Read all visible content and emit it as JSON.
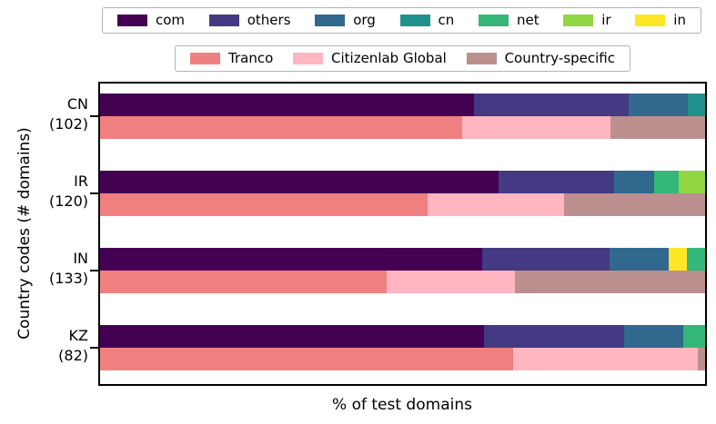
{
  "chart_data": {
    "type": "bar",
    "orientation": "horizontal",
    "xlabel": "% of test domains",
    "ylabel": "Country codes (# domains)",
    "xlim": [
      0,
      100
    ],
    "grid": false,
    "legend_position": "top, two rows, outside plot",
    "tld_legend": [
      {
        "label": "com",
        "color": "#440154"
      },
      {
        "label": "others",
        "color": "#443983"
      },
      {
        "label": "org",
        "color": "#31688e"
      },
      {
        "label": "cn",
        "color": "#21918c"
      },
      {
        "label": "net",
        "color": "#35b779"
      },
      {
        "label": "ir",
        "color": "#90d743"
      },
      {
        "label": "in",
        "color": "#fde725"
      }
    ],
    "list_legend": [
      {
        "label": "Tranco",
        "color": "#f08080"
      },
      {
        "label": "Citizenlab Global",
        "color": "#ffb6c1"
      },
      {
        "label": "Country-specific",
        "color": "#bc8f8f"
      }
    ],
    "groups": [
      {
        "country": "CN",
        "count_label": "(102)",
        "domains": 102,
        "tld_bar": [
          {
            "label": "com",
            "pct": 61.8
          },
          {
            "label": "others",
            "pct": 25.5
          },
          {
            "label": "org",
            "pct": 9.8
          },
          {
            "label": "cn",
            "pct": 2.9
          }
        ],
        "list_bar": [
          {
            "label": "Tranco",
            "pct": 59.8
          },
          {
            "label": "Citizenlab Global",
            "pct": 24.5
          },
          {
            "label": "Country-specific",
            "pct": 15.7
          }
        ]
      },
      {
        "country": "IR",
        "count_label": "(120)",
        "domains": 120,
        "tld_bar": [
          {
            "label": "com",
            "pct": 65.8
          },
          {
            "label": "others",
            "pct": 19.2
          },
          {
            "label": "org",
            "pct": 6.6
          },
          {
            "label": "net",
            "pct": 4.0
          },
          {
            "label": "ir",
            "pct": 4.4
          }
        ],
        "list_bar": [
          {
            "label": "Tranco",
            "pct": 54.2
          },
          {
            "label": "Citizenlab Global",
            "pct": 22.5
          },
          {
            "label": "Country-specific",
            "pct": 23.3
          }
        ]
      },
      {
        "country": "IN",
        "count_label": "(133)",
        "domains": 133,
        "tld_bar": [
          {
            "label": "com",
            "pct": 63.2
          },
          {
            "label": "others",
            "pct": 21.0
          },
          {
            "label": "org",
            "pct": 9.8
          },
          {
            "label": "in",
            "pct": 3.0
          },
          {
            "label": "net",
            "pct": 3.0
          }
        ],
        "list_bar": [
          {
            "label": "Tranco",
            "pct": 47.4
          },
          {
            "label": "Citizenlab Global",
            "pct": 21.1
          },
          {
            "label": "Country-specific",
            "pct": 31.5
          }
        ]
      },
      {
        "country": "KZ",
        "count_label": "(82)",
        "domains": 82,
        "tld_bar": [
          {
            "label": "com",
            "pct": 63.4
          },
          {
            "label": "others",
            "pct": 23.2
          },
          {
            "label": "org",
            "pct": 9.8
          },
          {
            "label": "net",
            "pct": 3.6
          }
        ],
        "list_bar": [
          {
            "label": "Tranco",
            "pct": 68.3
          },
          {
            "label": "Citizenlab Global",
            "pct": 30.5
          },
          {
            "label": "Country-specific",
            "pct": 1.2
          }
        ]
      }
    ]
  }
}
